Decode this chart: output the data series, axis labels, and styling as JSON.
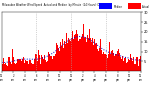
{
  "n_minutes": 1440,
  "bar_color": "#ff0000",
  "line_color": "#0000cc",
  "background_color": "#ffffff",
  "ylim": [
    0,
    30
  ],
  "ytick_values": [
    5,
    10,
    15,
    20,
    25,
    30
  ],
  "vline_positions": [
    360,
    720,
    1080
  ],
  "vline_color": "#aaaaaa",
  "legend_actual_color": "#ff0000",
  "legend_median_color": "#0000ff",
  "legend_actual_label": "Actual",
  "legend_median_label": "Median",
  "title_text": "Milwaukee Weather Wind Speed  Actual and Median  by Minute  (24 Hours) (Old)",
  "wind_seed": 42,
  "peak_hour": 13.5,
  "peak_magnitude": 14,
  "base_wind": 1.5,
  "noise_scale": 3.5
}
